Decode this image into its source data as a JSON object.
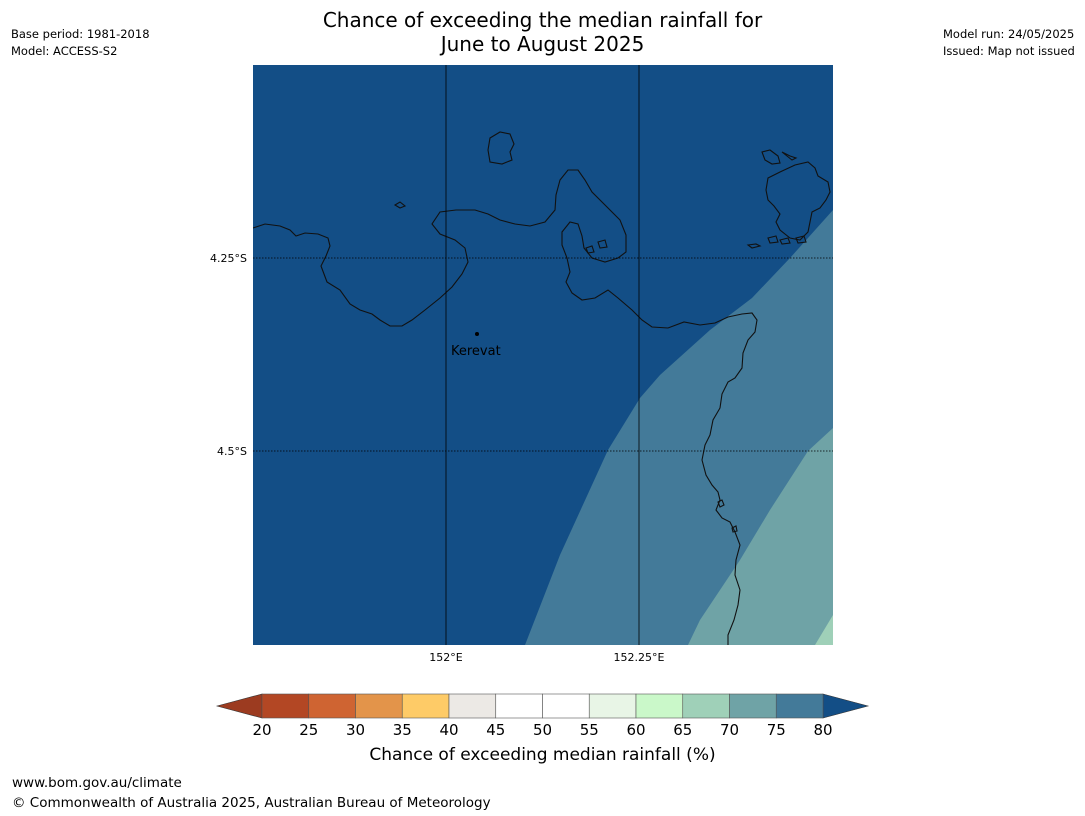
{
  "title_line1": "Chance of exceeding the median rainfall for",
  "title_line2": "June to August 2025",
  "meta_left": {
    "base_period": "Base period: 1981-2018",
    "model": "Model: ACCESS-S2"
  },
  "meta_right": {
    "model_run": "Model run: 24/05/2025",
    "issued": "Issued: Map not issued"
  },
  "map": {
    "lat_labels": [
      "4.25°S",
      "4.5°S"
    ],
    "lon_labels": [
      "152°E",
      "152.25°E"
    ],
    "place": {
      "name": "Kerevat"
    },
    "zones": [
      {
        "range": "75-80+",
        "color": "#134e86"
      },
      {
        "range": "70-75",
        "color": "#437a99"
      },
      {
        "range": "65-70",
        "color": "#6fa3a6"
      },
      {
        "range": "60-65",
        "color": "#9fd0b8"
      }
    ]
  },
  "colorbar": {
    "ticks": [
      "20",
      "25",
      "30",
      "35",
      "40",
      "45",
      "50",
      "55",
      "60",
      "65",
      "70",
      "75",
      "80"
    ],
    "under_color": "#9c3b20",
    "over_color": "#134e86",
    "colors": [
      "#b34724",
      "#cf6432",
      "#e3944a",
      "#fecb67",
      "#ece9e5",
      "#ffffff",
      "#ffffff",
      "#e8f5e6",
      "#caf8c9",
      "#9fd0b8",
      "#6fa3a6",
      "#437a99"
    ],
    "label": "Chance of exceeding median rainfall (%)"
  },
  "footer": {
    "url": "www.bom.gov.au/climate",
    "copyright": "© Commonwealth of Australia 2025, Australian Bureau of Meteorology"
  }
}
